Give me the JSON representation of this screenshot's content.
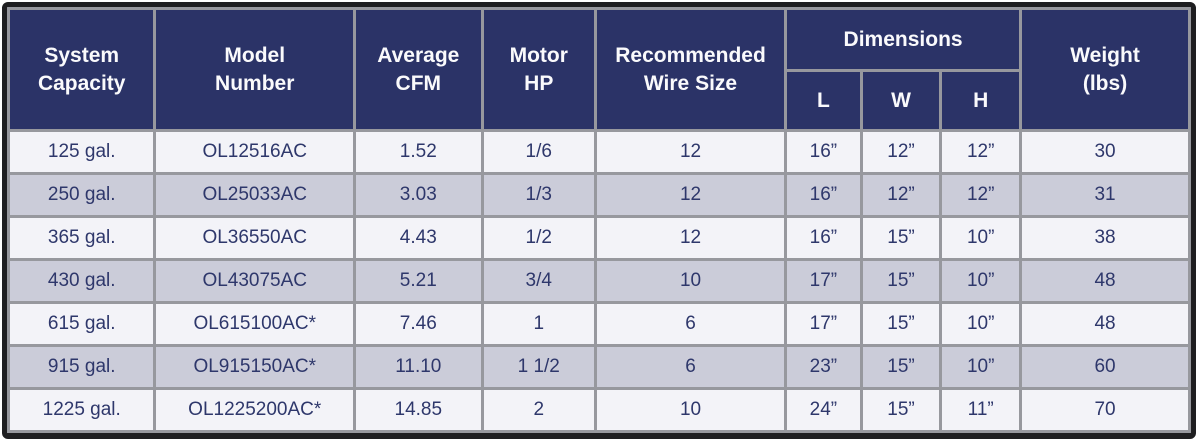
{
  "header": {
    "system_capacity": "System\nCapacity",
    "model_number": "Model\nNumber",
    "average_cfm": "Average\nCFM",
    "motor_hp": "Motor\nHP",
    "wire_size": "Recommended\nWire Size",
    "dimensions": "Dimensions",
    "l": "L",
    "w": "W",
    "h": "H",
    "weight": "Weight\n(lbs)"
  },
  "chart_data": {
    "type": "table",
    "columns": [
      "System Capacity",
      "Model Number",
      "Average CFM",
      "Motor HP",
      "Recommended Wire Size",
      "Dimensions L",
      "Dimensions W",
      "Dimensions H",
      "Weight (lbs)"
    ],
    "rows": [
      [
        "125 gal.",
        "OL12516AC",
        "1.52",
        "1/6",
        "12",
        "16”",
        "12”",
        "12”",
        "30"
      ],
      [
        "250 gal.",
        "OL25033AC",
        "3.03",
        "1/3",
        "12",
        "16”",
        "12”",
        "12”",
        "31"
      ],
      [
        "365 gal.",
        "OL36550AC",
        "4.43",
        "1/2",
        "12",
        "16”",
        "15”",
        "10”",
        "38"
      ],
      [
        "430 gal.",
        "OL43075AC",
        "5.21",
        "3/4",
        "10",
        "17”",
        "15”",
        "10”",
        "48"
      ],
      [
        "615 gal.",
        "OL615100AC*",
        "7.46",
        "1",
        "6",
        "17”",
        "15”",
        "10”",
        "48"
      ],
      [
        "915 gal.",
        "OL915150AC*",
        "11.10",
        "1 1/2",
        "6",
        "23”",
        "15”",
        "10”",
        "60"
      ],
      [
        "1225 gal.",
        "OL1225200AC*",
        "14.85",
        "2",
        "10",
        "24”",
        "15”",
        "11”",
        "70"
      ]
    ]
  },
  "colors": {
    "header_bg": "#2b3367",
    "header_text": "#fafafc",
    "cell_text": "#2e376b",
    "row_odd": "#f3f3f8",
    "row_even": "#cbccd9",
    "grid": "#97989e",
    "frame": "#1e1e20",
    "page_bg": "#ffffff"
  }
}
